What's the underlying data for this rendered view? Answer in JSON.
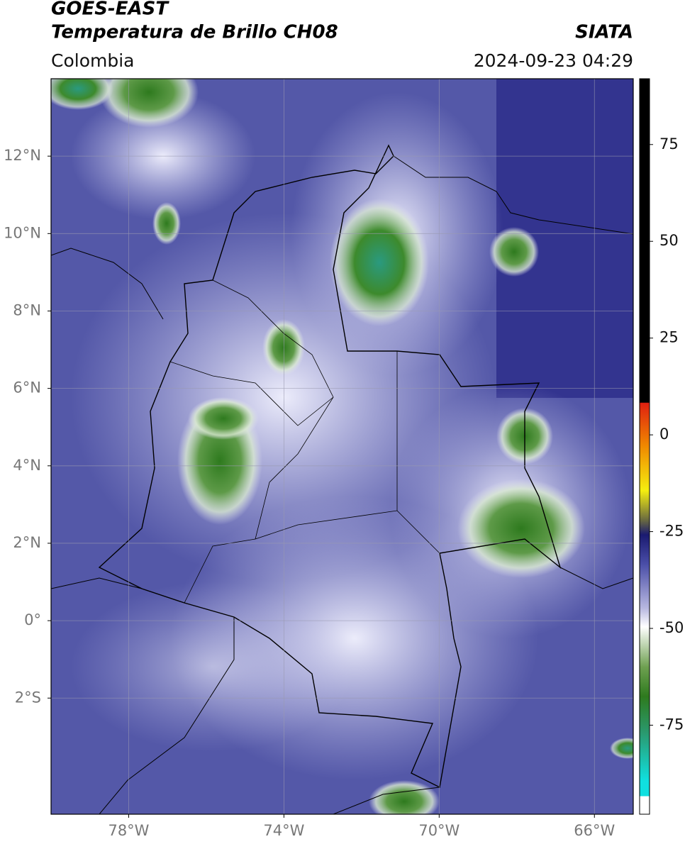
{
  "header": {
    "title": "GOES-EAST",
    "subtitle": "Temperatura de Brillo CH08",
    "source": "SIATA",
    "region": "Colombia",
    "datetime": "2024-09-23 04:29"
  },
  "map": {
    "xlim": [
      -80,
      -65
    ],
    "ylim": [
      -5,
      14
    ],
    "grid": true,
    "xticks": [
      {
        "value": -78,
        "label": "78°W"
      },
      {
        "value": -74,
        "label": "74°W"
      },
      {
        "value": -70,
        "label": "70°W"
      },
      {
        "value": -66,
        "label": "66°W"
      }
    ],
    "yticks": [
      {
        "value": 12,
        "label": "12°N"
      },
      {
        "value": 10,
        "label": "10°N"
      },
      {
        "value": 8,
        "label": "8°N"
      },
      {
        "value": 6,
        "label": "6°N"
      },
      {
        "value": 4,
        "label": "4°N"
      },
      {
        "value": 2,
        "label": "2°N"
      },
      {
        "value": 0,
        "label": "0°"
      },
      {
        "value": -2,
        "label": "2°S"
      }
    ]
  },
  "colorbar": {
    "lim": [
      -98,
      92
    ],
    "ticks": [
      75,
      50,
      25,
      0,
      -25,
      -50,
      -75
    ]
  }
}
